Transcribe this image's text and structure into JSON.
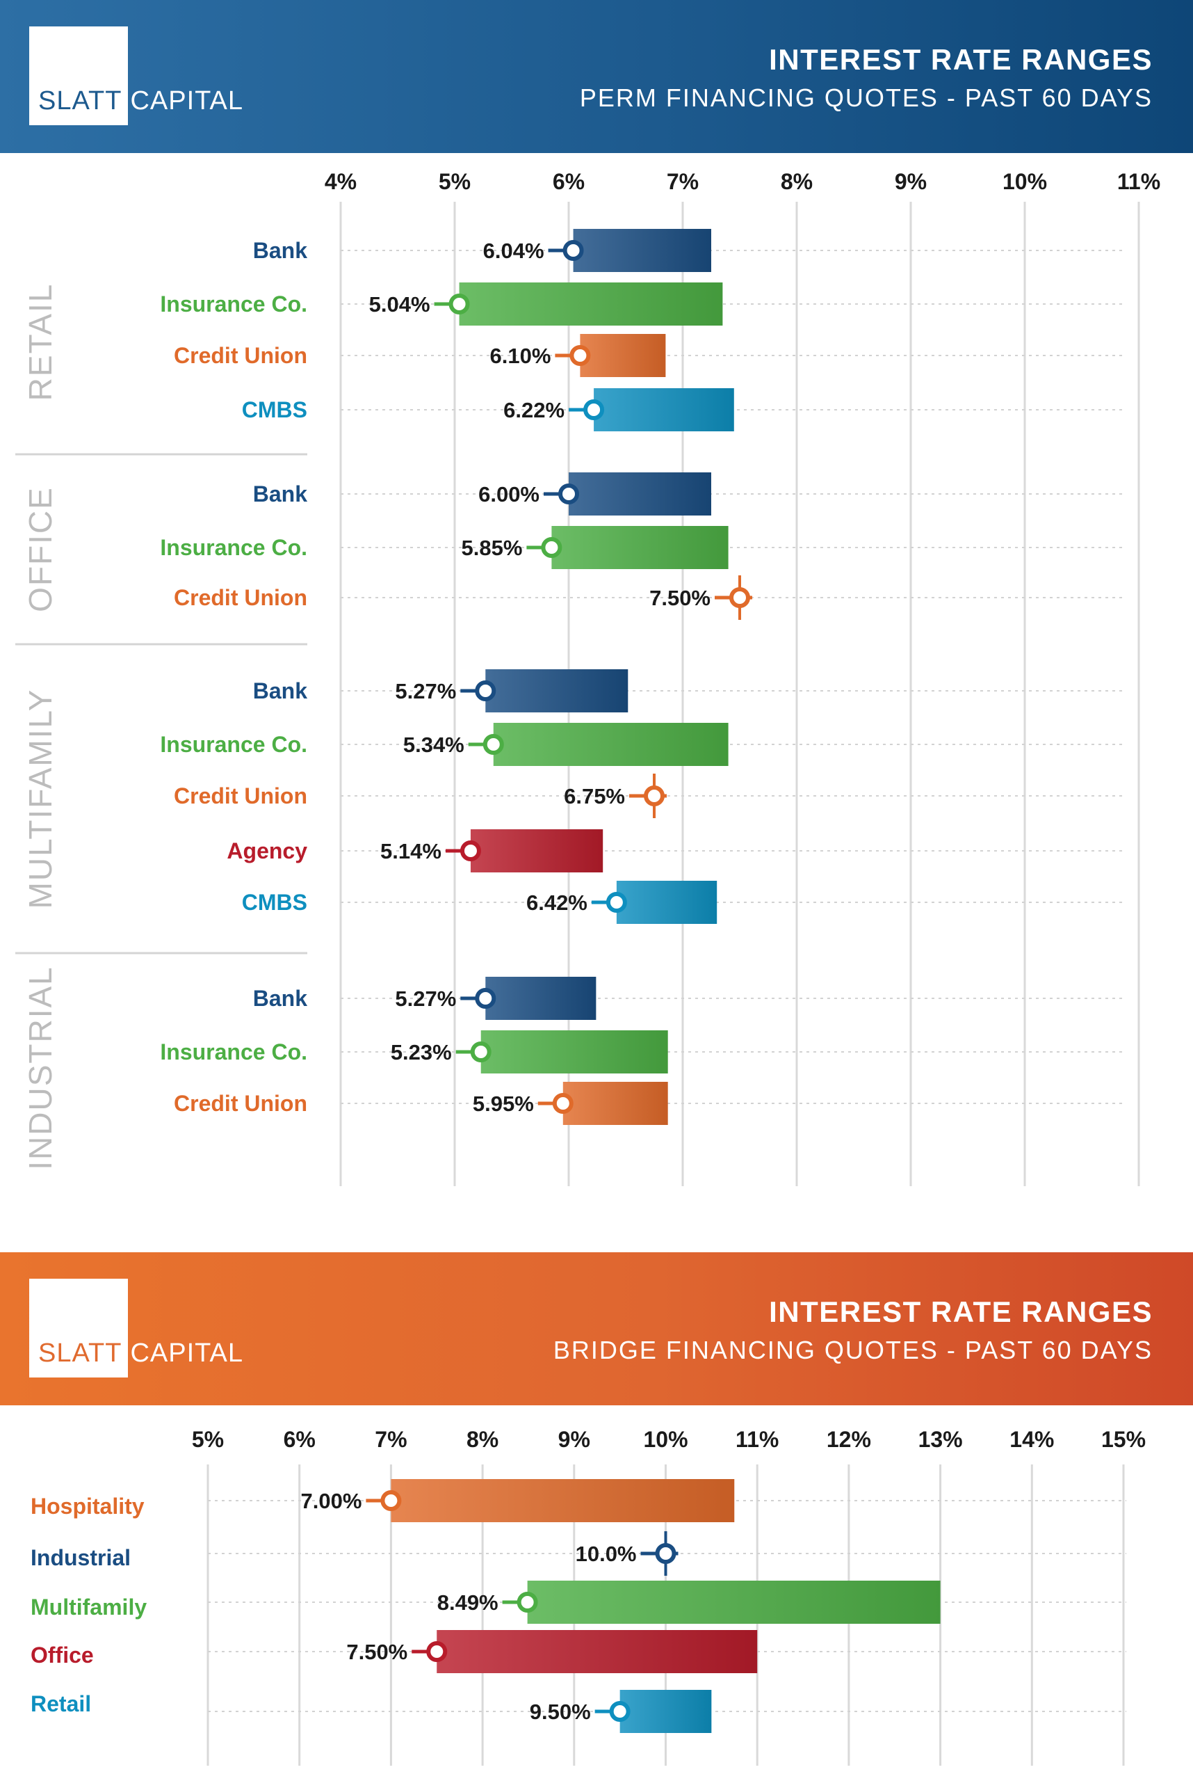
{
  "perm": {
    "logo": {
      "part1": "SLATT",
      "part2": "CAPITAL"
    },
    "title": "INTEREST RATE RANGES",
    "subtitle": "PERM FINANCING QUOTES - PAST 60 DAYS"
  },
  "bridge": {
    "logo": {
      "part1": "SLATT",
      "part2": "CAPITAL"
    },
    "title": "INTEREST RATE RANGES",
    "subtitle": "BRIDGE FINANCING QUOTES - PAST 60 DAYS"
  },
  "colors": {
    "Bank": "#1a4d82",
    "Insurance Co.": "#4cae44",
    "Credit Union": "#e06a2a",
    "CMBS": "#0e8fbf",
    "Agency": "#b81c2b",
    "Hospitality": "#e06a2a",
    "Industrial": "#1a4d82",
    "Multifamily": "#4cae44",
    "Office": "#b81c2b",
    "Retail": "#0e8fbf"
  },
  "chart_data": [
    {
      "type": "bar",
      "chart": "perm",
      "title": "INTEREST RATE RANGES",
      "subtitle": "PERM FINANCING QUOTES - PAST 60 DAYS",
      "x_ticks": [
        "4%",
        "5%",
        "6%",
        "7%",
        "8%",
        "9%",
        "10%",
        "11%"
      ],
      "xlim": [
        4,
        11
      ],
      "groups": [
        {
          "name": "RETAIL",
          "rows": [
            {
              "lender": "Bank",
              "low": 6.04,
              "high": 7.25,
              "label": "6.04%"
            },
            {
              "lender": "Insurance Co.",
              "low": 5.04,
              "high": 7.35,
              "label": "5.04%"
            },
            {
              "lender": "Credit Union",
              "low": 6.1,
              "high": 6.85,
              "label": "6.10%"
            },
            {
              "lender": "CMBS",
              "low": 6.22,
              "high": 7.45,
              "label": "6.22%"
            }
          ]
        },
        {
          "name": "OFFICE",
          "rows": [
            {
              "lender": "Bank",
              "low": 6.0,
              "high": 7.25,
              "label": "6.00%"
            },
            {
              "lender": "Insurance Co.",
              "low": 5.85,
              "high": 7.4,
              "label": "5.85%"
            },
            {
              "lender": "Credit Union",
              "low": 7.5,
              "high": 7.5,
              "label": "7.50%"
            }
          ]
        },
        {
          "name": "MULTIFAMILY",
          "rows": [
            {
              "lender": "Bank",
              "low": 5.27,
              "high": 6.52,
              "label": "5.27%"
            },
            {
              "lender": "Insurance Co.",
              "low": 5.34,
              "high": 7.4,
              "label": "5.34%"
            },
            {
              "lender": "Credit Union",
              "low": 6.75,
              "high": 6.75,
              "label": "6.75%"
            },
            {
              "lender": "Agency",
              "low": 5.14,
              "high": 6.3,
              "label": "5.14%"
            },
            {
              "lender": "CMBS",
              "low": 6.42,
              "high": 7.3,
              "label": "6.42%"
            }
          ]
        },
        {
          "name": "INDUSTRIAL",
          "rows": [
            {
              "lender": "Bank",
              "low": 5.27,
              "high": 6.24,
              "label": "5.27%"
            },
            {
              "lender": "Insurance Co.",
              "low": 5.23,
              "high": 6.87,
              "label": "5.23%"
            },
            {
              "lender": "Credit Union",
              "low": 5.95,
              "high": 6.87,
              "label": "5.95%"
            }
          ]
        }
      ]
    },
    {
      "type": "bar",
      "chart": "bridge",
      "title": "INTEREST RATE RANGES",
      "subtitle": "BRIDGE FINANCING QUOTES - PAST 60 DAYS",
      "x_ticks": [
        "5%",
        "6%",
        "7%",
        "8%",
        "9%",
        "10%",
        "11%",
        "12%",
        "13%",
        "14%",
        "15%"
      ],
      "xlim": [
        5,
        15
      ],
      "rows": [
        {
          "category": "Hospitality",
          "low": 7.0,
          "high": 10.75,
          "label": "7.00%"
        },
        {
          "category": "Industrial",
          "low": 10.0,
          "high": 10.0,
          "label": "10.0%"
        },
        {
          "category": "Multifamily",
          "low": 8.49,
          "high": 13.0,
          "label": "8.49%"
        },
        {
          "category": "Office",
          "low": 7.5,
          "high": 11.0,
          "label": "7.50%"
        },
        {
          "category": "Retail",
          "low": 9.5,
          "high": 10.5,
          "label": "9.50%"
        }
      ]
    }
  ]
}
